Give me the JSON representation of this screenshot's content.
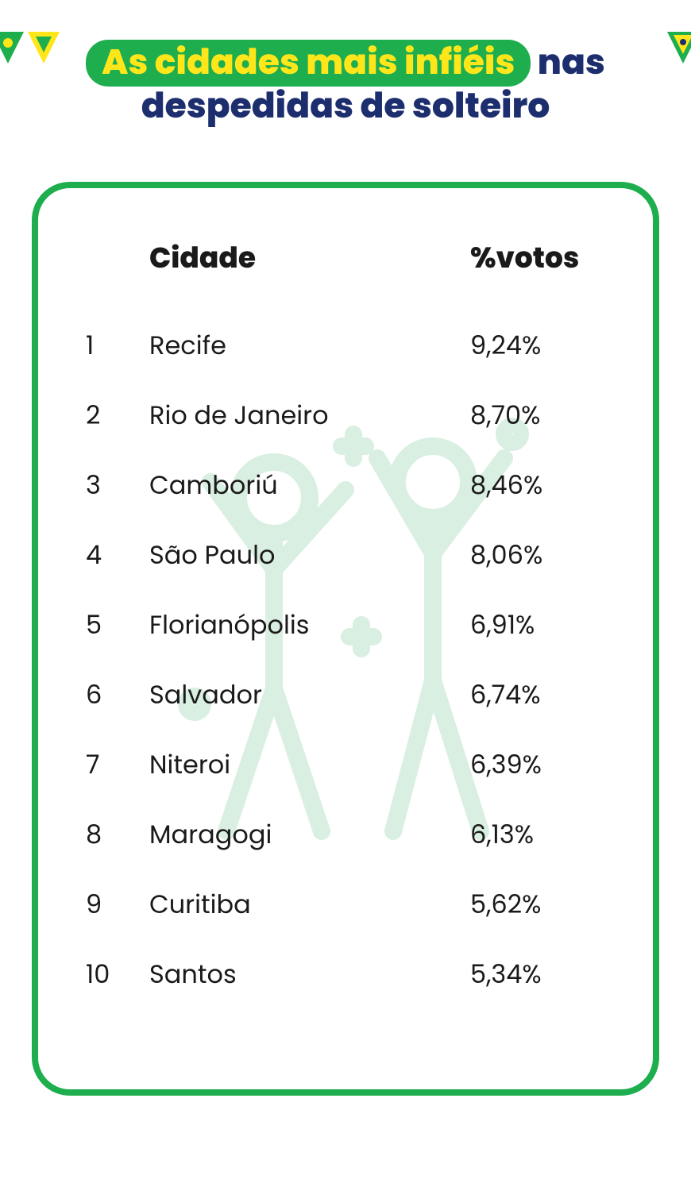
{
  "colors": {
    "background": "#ffffff",
    "title_text": "#1d2e6e",
    "highlight_bg": "#1eae4e",
    "highlight_text": "#ffe61a",
    "card_border": "#1eae4e",
    "text_black": "#1a1a1a",
    "bg_icon_stroke": "#d9efe2",
    "flag_green": "#1eae4e",
    "flag_yellow": "#ffe61a",
    "flag_blue": "#1d2e6e"
  },
  "typography": {
    "title_fontsize": 44,
    "header_fontsize": 36,
    "row_fontsize": 32
  },
  "title": {
    "highlighted": "As cidades mais infiéis",
    "part2": " nas",
    "line2": "despedidas de solteiro"
  },
  "table": {
    "type": "table",
    "columns": {
      "city": "Cidade",
      "pct": "%votos"
    },
    "rows": [
      {
        "rank": "1",
        "city": "Recife",
        "pct": "9,24%"
      },
      {
        "rank": "2",
        "city": "Rio de Janeiro",
        "pct": "8,70%"
      },
      {
        "rank": "3",
        "city": "Camboriú",
        "pct": "8,46%"
      },
      {
        "rank": "4",
        "city": "São Paulo",
        "pct": "8,06%"
      },
      {
        "rank": "5",
        "city": "Florianópolis",
        "pct": "6,91%"
      },
      {
        "rank": "6",
        "city": "Salvador",
        "pct": "6,74%"
      },
      {
        "rank": "7",
        "city": "Niteroi",
        "pct": "6,39%"
      },
      {
        "rank": "8",
        "city": "Maragogi",
        "pct": "6,13%"
      },
      {
        "rank": "9",
        "city": "Curitiba",
        "pct": "5,62%"
      },
      {
        "rank": "10",
        "city": "Santos",
        "pct": "5,34%"
      }
    ]
  }
}
